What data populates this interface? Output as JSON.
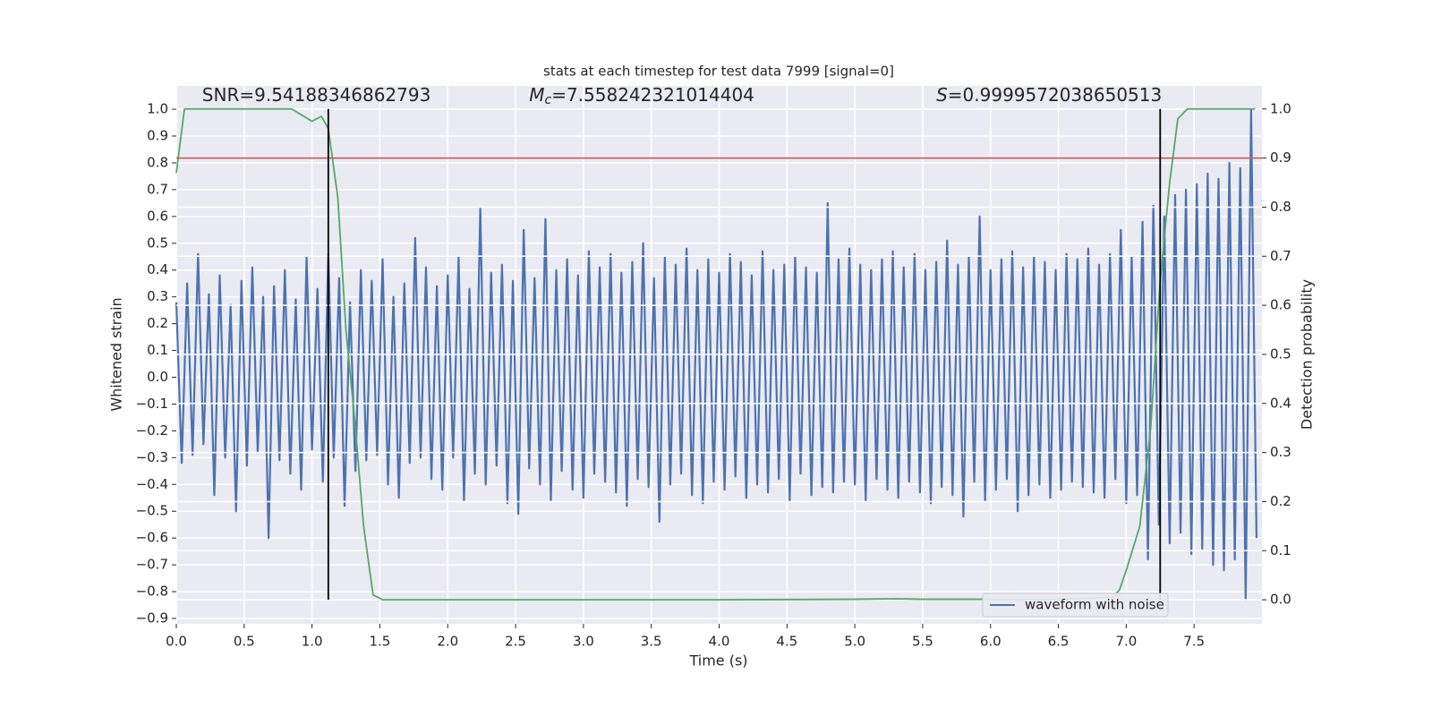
{
  "chart_data": {
    "type": "line",
    "title": "stats at each timestep for test data 7999 [signal=0]",
    "xlabel": "Time (s)",
    "ylabel": "Whitened strain",
    "y2label": "Detection probability",
    "annotations": [
      {
        "text": "SNR=9.54188346862793",
        "x": 0.19,
        "y": 1.05
      },
      {
        "symbol": "M",
        "subscript": "c",
        "text": "=7.558242321014404",
        "x": 2.6,
        "y": 1.05
      },
      {
        "symbol": "S",
        "text": "=0.9999572038650513",
        "x": 5.6,
        "y": 1.05
      }
    ],
    "xlim": [
      0,
      8.0
    ],
    "ylim": [
      -0.92,
      1.087
    ],
    "y2lim": [
      -0.049,
      1.047
    ],
    "xticks": [
      {
        "value": 0,
        "label": "0.0"
      },
      0.5,
      {
        "value": 1,
        "label": "1.0"
      },
      1.5,
      {
        "value": 2,
        "label": "2.0"
      },
      2.5,
      {
        "value": 3,
        "label": "3.0"
      },
      3.5,
      {
        "value": 4,
        "label": "4.0"
      },
      4.5,
      {
        "value": 5,
        "label": "5.0"
      },
      5.5,
      {
        "value": 6,
        "label": "6.0"
      },
      6.5,
      {
        "value": 7,
        "label": "7.0"
      },
      7.5
    ],
    "yticks": [
      {
        "value": -0.9,
        "label": "−0.9"
      },
      {
        "value": -0.8,
        "label": "−0.8"
      },
      {
        "value": -0.7,
        "label": "−0.7"
      },
      {
        "value": -0.6,
        "label": "−0.6"
      },
      {
        "value": -0.5,
        "label": "−0.5"
      },
      {
        "value": -0.4,
        "label": "−0.4"
      },
      {
        "value": -0.3,
        "label": "−0.3"
      },
      {
        "value": -0.2,
        "label": "−0.2"
      },
      {
        "value": -0.1,
        "label": "−0.1"
      },
      {
        "value": 0,
        "label": "0.0"
      },
      0.1,
      0.2,
      0.3,
      0.4,
      0.5,
      0.6,
      0.7,
      0.8,
      0.9,
      {
        "value": 1,
        "label": "1.0"
      }
    ],
    "y2ticks": [
      {
        "value": 0,
        "label": "0.0"
      },
      0.1,
      0.2,
      0.3,
      0.4,
      0.5,
      0.6,
      0.7,
      0.8,
      0.9,
      {
        "value": 1,
        "label": "1.0"
      }
    ],
    "grid": true,
    "legend": "lower right",
    "series": [
      {
        "name": "waveform with noise",
        "color": "#4c72b0",
        "x": [
          0,
          0.04,
          0.08,
          0.12,
          0.16,
          0.2,
          0.24,
          0.28,
          0.32,
          0.36,
          0.4,
          0.44,
          0.48,
          0.52,
          0.56,
          0.6,
          0.64,
          0.68,
          0.72,
          0.76,
          0.8,
          0.84,
          0.88,
          0.92,
          0.96,
          1,
          1.04,
          1.08,
          1.12,
          1.16,
          1.2,
          1.24,
          1.28,
          1.32,
          1.36,
          1.4,
          1.44,
          1.48,
          1.52,
          1.56,
          1.6,
          1.64,
          1.68,
          1.72,
          1.76,
          1.8,
          1.84,
          1.88,
          1.92,
          1.96,
          2,
          2.04,
          2.08,
          2.12,
          2.16,
          2.2,
          2.24,
          2.28,
          2.32,
          2.36,
          2.4,
          2.44,
          2.48,
          2.52,
          2.56,
          2.6,
          2.64,
          2.68,
          2.72,
          2.76,
          2.8,
          2.84,
          2.88,
          2.92,
          2.96,
          3,
          3.04,
          3.08,
          3.12,
          3.16,
          3.2,
          3.24,
          3.28,
          3.32,
          3.36,
          3.4,
          3.44,
          3.48,
          3.52,
          3.56,
          3.6,
          3.64,
          3.68,
          3.72,
          3.76,
          3.8,
          3.84,
          3.88,
          3.92,
          3.96,
          4,
          4.04,
          4.08,
          4.12,
          4.16,
          4.2,
          4.24,
          4.28,
          4.32,
          4.36,
          4.4,
          4.44,
          4.48,
          4.52,
          4.56,
          4.6,
          4.64,
          4.68,
          4.72,
          4.76,
          4.8,
          4.84,
          4.88,
          4.92,
          4.96,
          5,
          5.04,
          5.08,
          5.12,
          5.16,
          5.2,
          5.24,
          5.28,
          5.32,
          5.36,
          5.4,
          5.44,
          5.48,
          5.52,
          5.56,
          5.6,
          5.64,
          5.68,
          5.72,
          5.76,
          5.8,
          5.84,
          5.88,
          5.92,
          5.96,
          6,
          6.04,
          6.08,
          6.12,
          6.16,
          6.2,
          6.24,
          6.28,
          6.32,
          6.36,
          6.4,
          6.44,
          6.48,
          6.52,
          6.56,
          6.6,
          6.64,
          6.68,
          6.72,
          6.76,
          6.8,
          6.84,
          6.88,
          6.92,
          6.96,
          7,
          7.04,
          7.08,
          7.12,
          7.16,
          7.2,
          7.24,
          7.28,
          7.32,
          7.36,
          7.4,
          7.44,
          7.48,
          7.52,
          7.56,
          7.6,
          7.64,
          7.68,
          7.72,
          7.76,
          7.8,
          7.84,
          7.88,
          7.92,
          7.96
        ],
        "values": [
          0.28,
          -0.32,
          0.35,
          -0.29,
          0.46,
          -0.25,
          0.31,
          -0.44,
          0.38,
          -0.3,
          0.27,
          -0.5,
          0.36,
          -0.33,
          0.41,
          -0.28,
          0.3,
          -0.6,
          0.34,
          -0.31,
          0.4,
          -0.36,
          0.29,
          -0.42,
          0.45,
          -0.27,
          0.33,
          -0.39,
          0.46,
          -0.3,
          0.37,
          -0.48,
          0.28,
          -0.35,
          0.4,
          -0.31,
          0.36,
          -0.29,
          0.44,
          -0.4,
          0.3,
          -0.45,
          0.35,
          -0.32,
          0.52,
          -0.3,
          0.41,
          -0.38,
          0.34,
          -0.42,
          0.38,
          -0.3,
          0.45,
          -0.46,
          0.33,
          -0.36,
          0.63,
          -0.4,
          0.39,
          -0.33,
          0.42,
          -0.47,
          0.36,
          -0.51,
          0.55,
          -0.34,
          0.37,
          -0.4,
          0.59,
          -0.46,
          0.4,
          -0.35,
          0.44,
          -0.42,
          0.38,
          -0.45,
          0.47,
          -0.36,
          0.41,
          -0.39,
          0.46,
          -0.43,
          0.39,
          -0.48,
          0.43,
          -0.38,
          0.5,
          -0.41,
          0.37,
          -0.54,
          0.45,
          -0.4,
          0.42,
          -0.36,
          0.48,
          -0.44,
          0.4,
          -0.47,
          0.44,
          -0.39,
          0.39,
          -0.42,
          0.46,
          -0.37,
          0.43,
          -0.45,
          0.38,
          -0.4,
          0.47,
          -0.43,
          0.4,
          -0.38,
          0.42,
          -0.46,
          0.45,
          -0.36,
          0.41,
          -0.44,
          0.39,
          -0.41,
          0.65,
          -0.43,
          0.44,
          -0.39,
          0.48,
          -0.4,
          0.42,
          -0.46,
          0.4,
          -0.38,
          0.44,
          -0.42,
          0.47,
          -0.45,
          0.41,
          -0.39,
          0.46,
          -0.43,
          0.4,
          -0.47,
          0.43,
          -0.41,
          0.51,
          -0.44,
          0.42,
          -0.52,
          0.45,
          -0.39,
          0.6,
          -0.46,
          0.4,
          -0.42,
          0.44,
          -0.38,
          0.47,
          -0.5,
          0.41,
          -0.44,
          0.45,
          -0.4,
          0.43,
          -0.45,
          0.4,
          -0.42,
          0.46,
          -0.39,
          0.44,
          -0.41,
          0.48,
          -0.43,
          0.42,
          -0.45,
          0.46,
          -0.38,
          0.55,
          -0.47,
          0.45,
          -0.44,
          0.58,
          -0.68,
          0.64,
          -0.55,
          0.6,
          -0.62,
          0.68,
          -0.58,
          0.7,
          -0.66,
          0.72,
          -0.64,
          0.76,
          -0.7,
          0.74,
          -0.72,
          0.8,
          -0.68,
          0.78,
          -0.83,
          1.0,
          -0.6
        ]
      },
      {
        "color": "#55a868",
        "axis": "y2",
        "x": [
          0,
          0.06,
          0.13,
          0.25,
          0.5,
          0.75,
          0.85,
          1.0,
          1.07,
          1.12,
          1.19,
          1.25,
          1.32,
          1.38,
          1.45,
          1.52,
          2.0,
          3.0,
          4.0,
          5.0,
          5.3,
          5.5,
          6.0,
          6.5,
          6.9,
          6.95,
          7.0,
          7.1,
          7.18,
          7.25,
          7.32,
          7.38,
          7.45,
          7.95
        ],
        "values": [
          0.87,
          1.0,
          1.0,
          1.0,
          1.0,
          1.0,
          1.0,
          0.975,
          0.985,
          0.96,
          0.82,
          0.55,
          0.35,
          0.15,
          0.01,
          0.0,
          0.0,
          0.0,
          0.0,
          0.001,
          0.002,
          0.001,
          0.001,
          0.001,
          0.005,
          0.02,
          0.06,
          0.15,
          0.35,
          0.65,
          0.85,
          0.98,
          1.0,
          1.0
        ]
      }
    ],
    "hline": {
      "y": 0.9,
      "axis": "y2",
      "color": "#c44e52"
    },
    "vlines": [
      {
        "x": 1.12,
        "ymin": 0,
        "ymax": 1,
        "axis": "y2",
        "color": "#000000"
      },
      {
        "x": 7.25,
        "ymin": 0,
        "ymax": 1,
        "axis": "y2",
        "color": "#000000"
      }
    ]
  }
}
